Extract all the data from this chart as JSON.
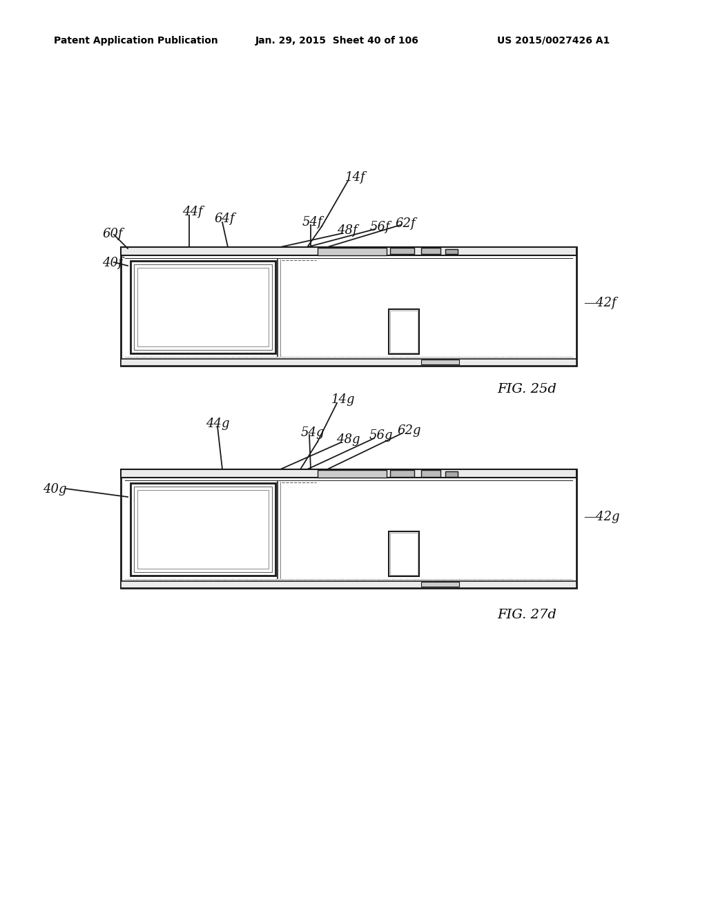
{
  "bg_color": "#ffffff",
  "header_text": "Patent Application Publication",
  "header_date": "Jan. 29, 2015  Sheet 40 of 106",
  "header_patent": "US 2015/0027426 A1",
  "fig1_caption": "FIG. 25d",
  "fig2_caption": "FIG. 27d",
  "line_color": "#1a1a1a",
  "gray_fill": "#d8d8d8",
  "light_gray": "#ebebeb",
  "label_color": "#111111"
}
